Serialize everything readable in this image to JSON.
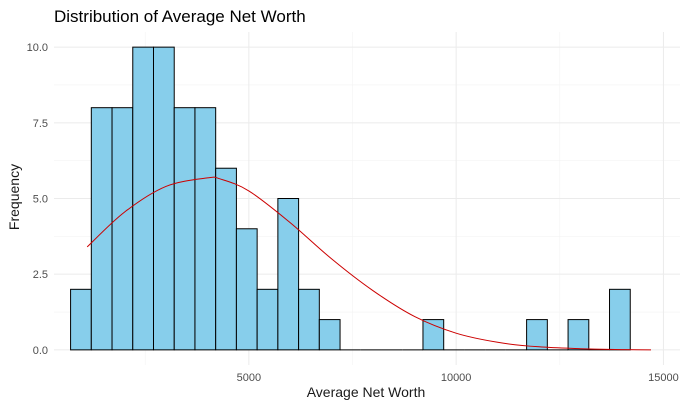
{
  "chart_data": {
    "type": "bar",
    "subtype": "histogram",
    "title": "Distribution of Average Net Worth",
    "xlabel": "Average Net Worth",
    "ylabel": "Frequency",
    "xlim": [
      300,
      15400
    ],
    "ylim": [
      -0.5,
      10.5
    ],
    "x_ticks": [
      5000,
      10000,
      15000
    ],
    "y_ticks": [
      0.0,
      2.5,
      5.0,
      7.5,
      10.0
    ],
    "y_tick_labels": [
      "0.0",
      "2.5",
      "5.0",
      "7.5",
      "10.0"
    ],
    "bins": {
      "start": 700,
      "width": 500,
      "counts": [
        2,
        8,
        8,
        10,
        10,
        8,
        8,
        6,
        4,
        2,
        5,
        2,
        1,
        0,
        0,
        0,
        0,
        1,
        0,
        0,
        0,
        0,
        1,
        0,
        1,
        0,
        2
      ]
    },
    "density_curve": {
      "x": [
        1100,
        2000,
        3000,
        4000,
        4300,
        5000,
        6000,
        7000,
        8000,
        9000,
        10000,
        11000,
        12000,
        13000,
        14000,
        14700
      ],
      "y": [
        3.4,
        4.55,
        5.4,
        5.68,
        5.65,
        5.25,
        4.2,
        3.0,
        1.95,
        1.1,
        0.55,
        0.25,
        0.1,
        0.04,
        0.01,
        0.0
      ]
    },
    "grid": true,
    "legend": "none",
    "colors": {
      "bar_fill": "#87CEEB",
      "bar_stroke": "#000000",
      "curve": "#cc0000",
      "grid": "#ebebeb"
    }
  }
}
